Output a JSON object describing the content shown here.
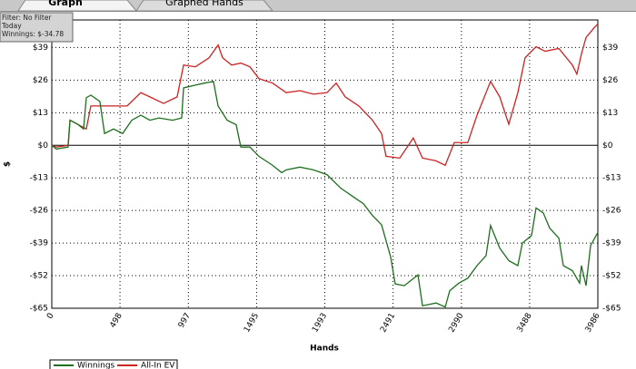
{
  "tabs": [
    "Graph",
    "Graphed Hands"
  ],
  "info_box": [
    "Filter: No Filter",
    "Today",
    "Winnings: $-34.78"
  ],
  "chart_data": {
    "type": "line",
    "xlabel": "Hands",
    "ylabel": "$",
    "xlim": [
      0,
      3986
    ],
    "xticks": [
      0,
      498,
      997,
      1495,
      1993,
      2491,
      2990,
      3488,
      3986
    ],
    "ylim": [
      -65,
      50
    ],
    "yticks": [
      {
        "value": -65,
        "label": "-$65"
      },
      {
        "value": -52,
        "label": "-$52"
      },
      {
        "value": -39,
        "label": "-$39"
      },
      {
        "value": -26,
        "label": "-$26"
      },
      {
        "value": -13,
        "label": "-$13"
      },
      {
        "value": 0,
        "label": "$0"
      },
      {
        "value": 13,
        "label": "$13"
      },
      {
        "value": 26,
        "label": "$26"
      },
      {
        "value": 39,
        "label": "$39"
      }
    ],
    "grid": true,
    "legend": "bottom-left",
    "series": [
      {
        "name": "Winnings",
        "color": "#1e6e1e",
        "x": [
          0,
          33,
          119,
          133,
          186,
          232,
          252,
          285,
          351,
          385,
          451,
          517,
          584,
          650,
          716,
          783,
          882,
          948,
          962,
          1048,
          1114,
          1180,
          1214,
          1280,
          1346,
          1380,
          1446,
          1512,
          1612,
          1678,
          1711,
          1811,
          1910,
          2009,
          2109,
          2208,
          2275,
          2341,
          2407,
          2473,
          2507,
          2573,
          2673,
          2706,
          2805,
          2872,
          2905,
          2971,
          3037,
          3104,
          3170,
          3203,
          3270,
          3336,
          3402,
          3435,
          3502,
          3535,
          3588,
          3634,
          3701,
          3734,
          3800,
          3853,
          3866,
          3900,
          3933,
          3986
        ],
        "values": [
          0,
          -1.5,
          -0.7,
          10,
          8.5,
          6.5,
          19,
          20,
          17.5,
          4.7,
          6.5,
          4.7,
          10,
          12,
          10,
          10.9,
          10,
          10.9,
          22.9,
          24,
          24.8,
          25.5,
          15.7,
          10,
          8.2,
          -0.7,
          -0.7,
          -4.4,
          -8,
          -10.9,
          -9.8,
          -8.7,
          -9.8,
          -11.7,
          -17.1,
          -20.8,
          -23.3,
          -28,
          -31.7,
          -44.4,
          -55.3,
          -56,
          -51.7,
          -64,
          -62.9,
          -64.5,
          -58,
          -55,
          -53,
          -48,
          -44,
          -32,
          -41,
          -46,
          -48,
          -39,
          -36,
          -25,
          -27,
          -33,
          -37,
          -48,
          -50,
          -55,
          -48,
          -56,
          -40,
          -34.78
        ]
      },
      {
        "name": "All-In EV",
        "color": "#cc2222",
        "x": [
          0,
          33,
          119,
          133,
          252,
          285,
          418,
          550,
          650,
          716,
          816,
          915,
          962,
          1048,
          1148,
          1214,
          1247,
          1313,
          1380,
          1446,
          1512,
          1612,
          1711,
          1811,
          1910,
          2009,
          2076,
          2142,
          2241,
          2341,
          2407,
          2440,
          2540,
          2639,
          2706,
          2805,
          2872,
          2938,
          3037,
          3104,
          3170,
          3203,
          3270,
          3336,
          3402,
          3455,
          3535,
          3601,
          3701,
          3800,
          3833,
          3866,
          3900,
          3966,
          3986
        ],
        "values": [
          0,
          -0.7,
          0,
          10,
          6.5,
          15.7,
          15.7,
          15.7,
          21,
          19.3,
          16.7,
          19.3,
          32,
          31.3,
          34.9,
          40,
          34.9,
          32,
          32.8,
          31.3,
          26.6,
          24.8,
          21,
          21.8,
          20.4,
          21,
          24.8,
          19.3,
          15.7,
          10,
          4.7,
          -4.4,
          -5.1,
          2.9,
          -5.1,
          -6.2,
          -8,
          1.1,
          1.1,
          12,
          21,
          25.5,
          19.3,
          8.4,
          21,
          34.9,
          39.3,
          37.5,
          38.6,
          32,
          28.4,
          36.4,
          43,
          47.3,
          48.4
        ]
      }
    ]
  }
}
